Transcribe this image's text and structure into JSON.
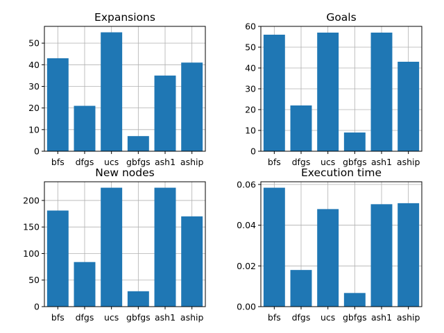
{
  "colors": {
    "bar": "#1f77b4",
    "grid": "#b0b0b0",
    "axis": "#000000"
  },
  "chart_data": [
    {
      "type": "bar",
      "title": "Expansions",
      "categories": [
        "bfs",
        "dfgs",
        "ucs",
        "gbfgs",
        "ash1",
        "aship"
      ],
      "values": [
        43,
        21,
        55,
        7,
        35,
        41
      ],
      "ylim": [
        0,
        57.75
      ],
      "yticks": [
        0,
        10,
        20,
        30,
        40,
        50
      ],
      "ytick_labels": [
        "0",
        "10",
        "20",
        "30",
        "40",
        "50"
      ],
      "grid": true
    },
    {
      "type": "bar",
      "title": "Goals",
      "categories": [
        "bfs",
        "dfgs",
        "ucs",
        "gbfgs",
        "ash1",
        "aship"
      ],
      "values": [
        56,
        22,
        57,
        9,
        57,
        43
      ],
      "ylim": [
        0,
        60
      ],
      "yticks": [
        0,
        10,
        20,
        30,
        40,
        50,
        60
      ],
      "ytick_labels": [
        "0",
        "10",
        "20",
        "30",
        "40",
        "50",
        "60"
      ],
      "grid": true
    },
    {
      "type": "bar",
      "title": "New nodes",
      "categories": [
        "bfs",
        "dfgs",
        "ucs",
        "gbfgs",
        "ash1",
        "aship"
      ],
      "values": [
        181,
        84,
        224,
        29,
        224,
        170
      ],
      "ylim": [
        0,
        235.2
      ],
      "yticks": [
        0,
        50,
        100,
        150,
        200
      ],
      "ytick_labels": [
        "0",
        "50",
        "100",
        "150",
        "200"
      ],
      "grid": true
    },
    {
      "type": "bar",
      "title": "Execution time",
      "categories": [
        "bfs",
        "dfgs",
        "ucs",
        "gbfgs",
        "ash1",
        "aship"
      ],
      "values": [
        0.0584,
        0.018,
        0.0479,
        0.0067,
        0.0503,
        0.0508
      ],
      "ylim": [
        0,
        0.06132
      ],
      "yticks": [
        0,
        0.02,
        0.04,
        0.06
      ],
      "ytick_labels": [
        "0.00",
        "0.02",
        "0.04",
        "0.06"
      ],
      "grid": true
    }
  ]
}
